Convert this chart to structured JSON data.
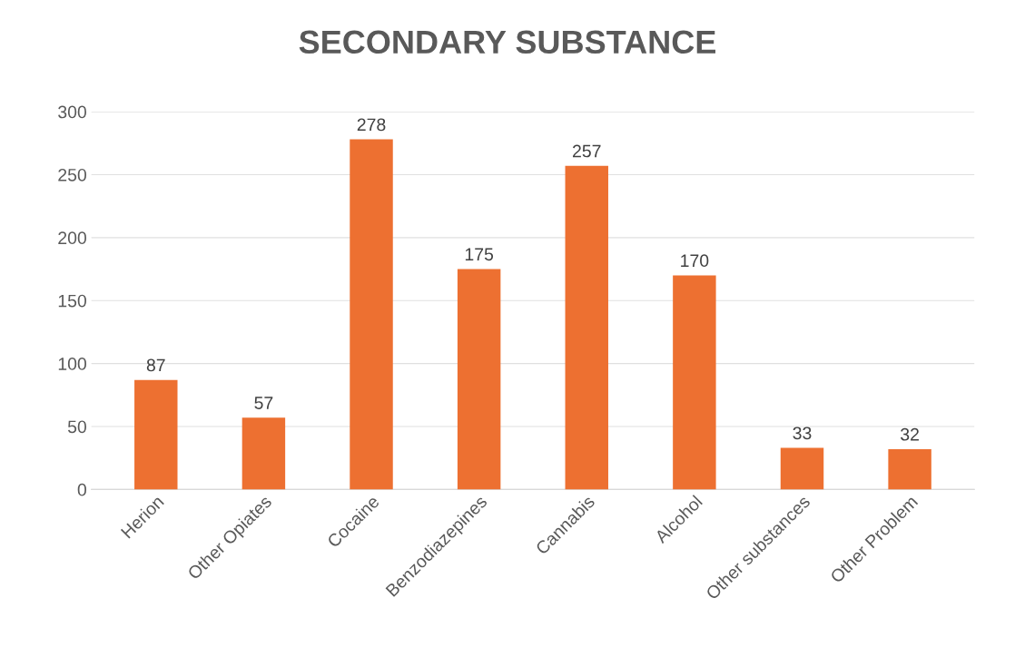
{
  "chart_data": {
    "type": "bar",
    "title": "SECONDARY SUBSTANCE",
    "categories": [
      "Herion",
      "Other Opiates",
      "Cocaine",
      "Benzodiazepines",
      "Cannabis",
      "Alcohol",
      "Other substances",
      "Other Problem"
    ],
    "values": [
      87,
      57,
      278,
      175,
      257,
      170,
      33,
      32
    ],
    "color": "#ed7031",
    "ylim": [
      0,
      300
    ],
    "yticks": [
      0,
      50,
      100,
      150,
      200,
      250,
      300
    ],
    "grid": "y",
    "data_labels": true
  }
}
